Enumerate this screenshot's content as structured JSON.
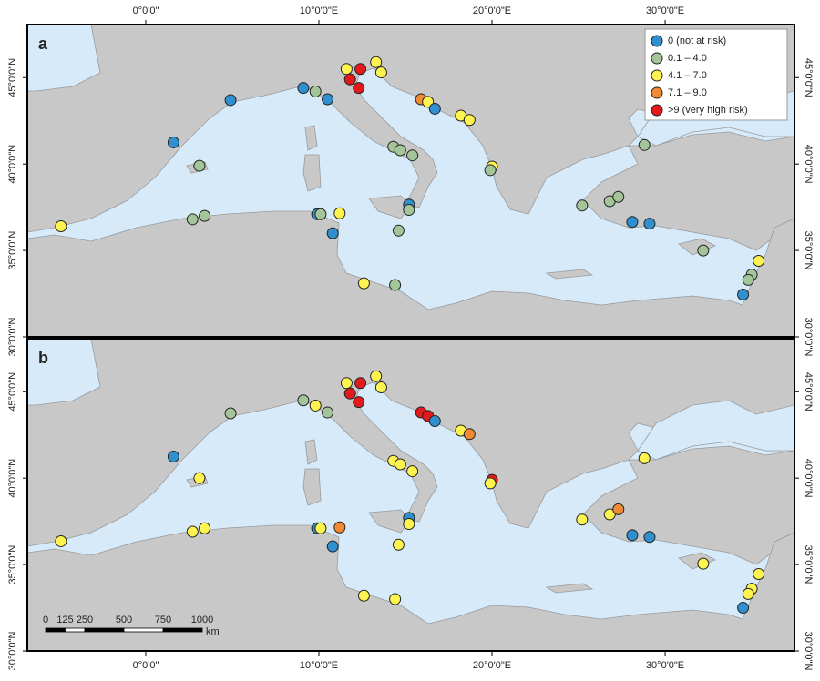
{
  "map": {
    "xlim": [
      -6.84,
      37.47
    ],
    "ylim": [
      30,
      48.07
    ],
    "xticks": [
      {
        "value": 0,
        "label": "0°0'0\""
      },
      {
        "value": 10,
        "label": "10°0'0\"E"
      },
      {
        "value": 20,
        "label": "20°0'0\"E"
      },
      {
        "value": 30,
        "label": "30°0'0\"E"
      }
    ],
    "yticks": [
      {
        "value": 30,
        "label": "30°0'0\"N"
      },
      {
        "value": 35,
        "label": "35°0'0\"N"
      },
      {
        "value": 40,
        "label": "40°0'0\"N"
      },
      {
        "value": 45,
        "label": "45°0'0\"N"
      }
    ]
  },
  "legend": [
    {
      "label": "0 (not at risk)",
      "color": "#2f8fcf"
    },
    {
      "label": "0.1 – 4.0",
      "color": "#a4c49a"
    },
    {
      "label": "4.1 – 7.0",
      "color": "#fff44f"
    },
    {
      "label": "7.1 – 9.0",
      "color": "#f08a34"
    },
    {
      "label": ">9 (very high risk)",
      "color": "#e31a1c"
    }
  ],
  "panels": [
    {
      "label": "a",
      "points": [
        {
          "lon": -4.9,
          "lat": 36.4,
          "risk": 2
        },
        {
          "lon": 1.6,
          "lat": 41.25,
          "risk": 0
        },
        {
          "lon": 4.9,
          "lat": 43.7,
          "risk": 0
        },
        {
          "lon": 3.1,
          "lat": 39.9,
          "risk": 1
        },
        {
          "lon": 2.7,
          "lat": 36.8,
          "risk": 1
        },
        {
          "lon": 3.4,
          "lat": 37.0,
          "risk": 1
        },
        {
          "lon": 9.1,
          "lat": 44.4,
          "risk": 0
        },
        {
          "lon": 9.8,
          "lat": 44.2,
          "risk": 1
        },
        {
          "lon": 10.5,
          "lat": 43.75,
          "risk": 0
        },
        {
          "lon": 11.6,
          "lat": 45.5,
          "risk": 2
        },
        {
          "lon": 12.4,
          "lat": 45.5,
          "risk": 4
        },
        {
          "lon": 11.8,
          "lat": 44.9,
          "risk": 4
        },
        {
          "lon": 12.3,
          "lat": 44.4,
          "risk": 4
        },
        {
          "lon": 13.3,
          "lat": 45.9,
          "risk": 2
        },
        {
          "lon": 13.6,
          "lat": 45.3,
          "risk": 2
        },
        {
          "lon": 15.9,
          "lat": 43.75,
          "risk": 3
        },
        {
          "lon": 16.3,
          "lat": 43.6,
          "risk": 2
        },
        {
          "lon": 16.7,
          "lat": 43.2,
          "risk": 0
        },
        {
          "lon": 18.2,
          "lat": 42.8,
          "risk": 2
        },
        {
          "lon": 18.7,
          "lat": 42.55,
          "risk": 2
        },
        {
          "lon": 14.3,
          "lat": 41.0,
          "risk": 1
        },
        {
          "lon": 14.7,
          "lat": 40.8,
          "risk": 1
        },
        {
          "lon": 15.4,
          "lat": 40.5,
          "risk": 1
        },
        {
          "lon": 20.0,
          "lat": 39.85,
          "risk": 2
        },
        {
          "lon": 19.9,
          "lat": 39.65,
          "risk": 1
        },
        {
          "lon": 9.9,
          "lat": 37.1,
          "risk": 0
        },
        {
          "lon": 10.1,
          "lat": 37.1,
          "risk": 1
        },
        {
          "lon": 11.2,
          "lat": 37.15,
          "risk": 2
        },
        {
          "lon": 10.8,
          "lat": 36.0,
          "risk": 0
        },
        {
          "lon": 15.2,
          "lat": 37.65,
          "risk": 0
        },
        {
          "lon": 15.2,
          "lat": 37.35,
          "risk": 1
        },
        {
          "lon": 14.6,
          "lat": 36.15,
          "risk": 1
        },
        {
          "lon": 12.6,
          "lat": 33.1,
          "risk": 2
        },
        {
          "lon": 14.4,
          "lat": 33.0,
          "risk": 1
        },
        {
          "lon": 28.8,
          "lat": 41.1,
          "risk": 1
        },
        {
          "lon": 25.2,
          "lat": 37.6,
          "risk": 1
        },
        {
          "lon": 26.8,
          "lat": 37.85,
          "risk": 1
        },
        {
          "lon": 27.3,
          "lat": 38.1,
          "risk": 1
        },
        {
          "lon": 28.1,
          "lat": 36.65,
          "risk": 0
        },
        {
          "lon": 29.1,
          "lat": 36.55,
          "risk": 0
        },
        {
          "lon": 32.2,
          "lat": 35.0,
          "risk": 1
        },
        {
          "lon": 35.4,
          "lat": 34.4,
          "risk": 2
        },
        {
          "lon": 35.0,
          "lat": 33.6,
          "risk": 1
        },
        {
          "lon": 34.8,
          "lat": 33.3,
          "risk": 1
        },
        {
          "lon": 34.5,
          "lat": 32.45,
          "risk": 0
        }
      ]
    },
    {
      "label": "b",
      "points": [
        {
          "lon": -4.9,
          "lat": 36.35,
          "risk": 2
        },
        {
          "lon": 1.6,
          "lat": 41.25,
          "risk": 0
        },
        {
          "lon": 4.9,
          "lat": 43.75,
          "risk": 1
        },
        {
          "lon": 3.1,
          "lat": 40.0,
          "risk": 2
        },
        {
          "lon": 2.7,
          "lat": 36.9,
          "risk": 2
        },
        {
          "lon": 3.4,
          "lat": 37.1,
          "risk": 2
        },
        {
          "lon": 9.1,
          "lat": 44.5,
          "risk": 1
        },
        {
          "lon": 9.8,
          "lat": 44.2,
          "risk": 2
        },
        {
          "lon": 10.5,
          "lat": 43.8,
          "risk": 1
        },
        {
          "lon": 11.6,
          "lat": 45.5,
          "risk": 2
        },
        {
          "lon": 12.4,
          "lat": 45.5,
          "risk": 4
        },
        {
          "lon": 11.8,
          "lat": 44.9,
          "risk": 4
        },
        {
          "lon": 12.3,
          "lat": 44.4,
          "risk": 4
        },
        {
          "lon": 13.3,
          "lat": 45.9,
          "risk": 2
        },
        {
          "lon": 13.6,
          "lat": 45.25,
          "risk": 2
        },
        {
          "lon": 15.9,
          "lat": 43.8,
          "risk": 4
        },
        {
          "lon": 16.3,
          "lat": 43.6,
          "risk": 4
        },
        {
          "lon": 16.7,
          "lat": 43.3,
          "risk": 0
        },
        {
          "lon": 18.2,
          "lat": 42.75,
          "risk": 2
        },
        {
          "lon": 18.7,
          "lat": 42.55,
          "risk": 3
        },
        {
          "lon": 14.3,
          "lat": 41.0,
          "risk": 2
        },
        {
          "lon": 14.7,
          "lat": 40.8,
          "risk": 2
        },
        {
          "lon": 15.4,
          "lat": 40.4,
          "risk": 2
        },
        {
          "lon": 20.0,
          "lat": 39.9,
          "risk": 4
        },
        {
          "lon": 19.9,
          "lat": 39.7,
          "risk": 2
        },
        {
          "lon": 9.9,
          "lat": 37.1,
          "risk": 0
        },
        {
          "lon": 10.1,
          "lat": 37.1,
          "risk": 2
        },
        {
          "lon": 11.2,
          "lat": 37.15,
          "risk": 3
        },
        {
          "lon": 10.8,
          "lat": 36.05,
          "risk": 0
        },
        {
          "lon": 15.2,
          "lat": 37.7,
          "risk": 0
        },
        {
          "lon": 15.2,
          "lat": 37.35,
          "risk": 2
        },
        {
          "lon": 14.6,
          "lat": 36.15,
          "risk": 2
        },
        {
          "lon": 12.6,
          "lat": 33.2,
          "risk": 2
        },
        {
          "lon": 14.4,
          "lat": 33.0,
          "risk": 2
        },
        {
          "lon": 28.8,
          "lat": 41.15,
          "risk": 2
        },
        {
          "lon": 25.2,
          "lat": 37.6,
          "risk": 2
        },
        {
          "lon": 26.8,
          "lat": 37.9,
          "risk": 2
        },
        {
          "lon": 27.3,
          "lat": 38.2,
          "risk": 3
        },
        {
          "lon": 28.1,
          "lat": 36.7,
          "risk": 0
        },
        {
          "lon": 29.1,
          "lat": 36.6,
          "risk": 0
        },
        {
          "lon": 32.2,
          "lat": 35.05,
          "risk": 2
        },
        {
          "lon": 35.4,
          "lat": 34.45,
          "risk": 2
        },
        {
          "lon": 35.0,
          "lat": 33.6,
          "risk": 2
        },
        {
          "lon": 34.8,
          "lat": 33.3,
          "risk": 2
        },
        {
          "lon": 34.5,
          "lat": 32.5,
          "risk": 0
        }
      ]
    }
  ],
  "scale_bar": {
    "ticks": [
      0,
      125,
      250,
      500,
      750,
      1000
    ],
    "unit": "km"
  }
}
